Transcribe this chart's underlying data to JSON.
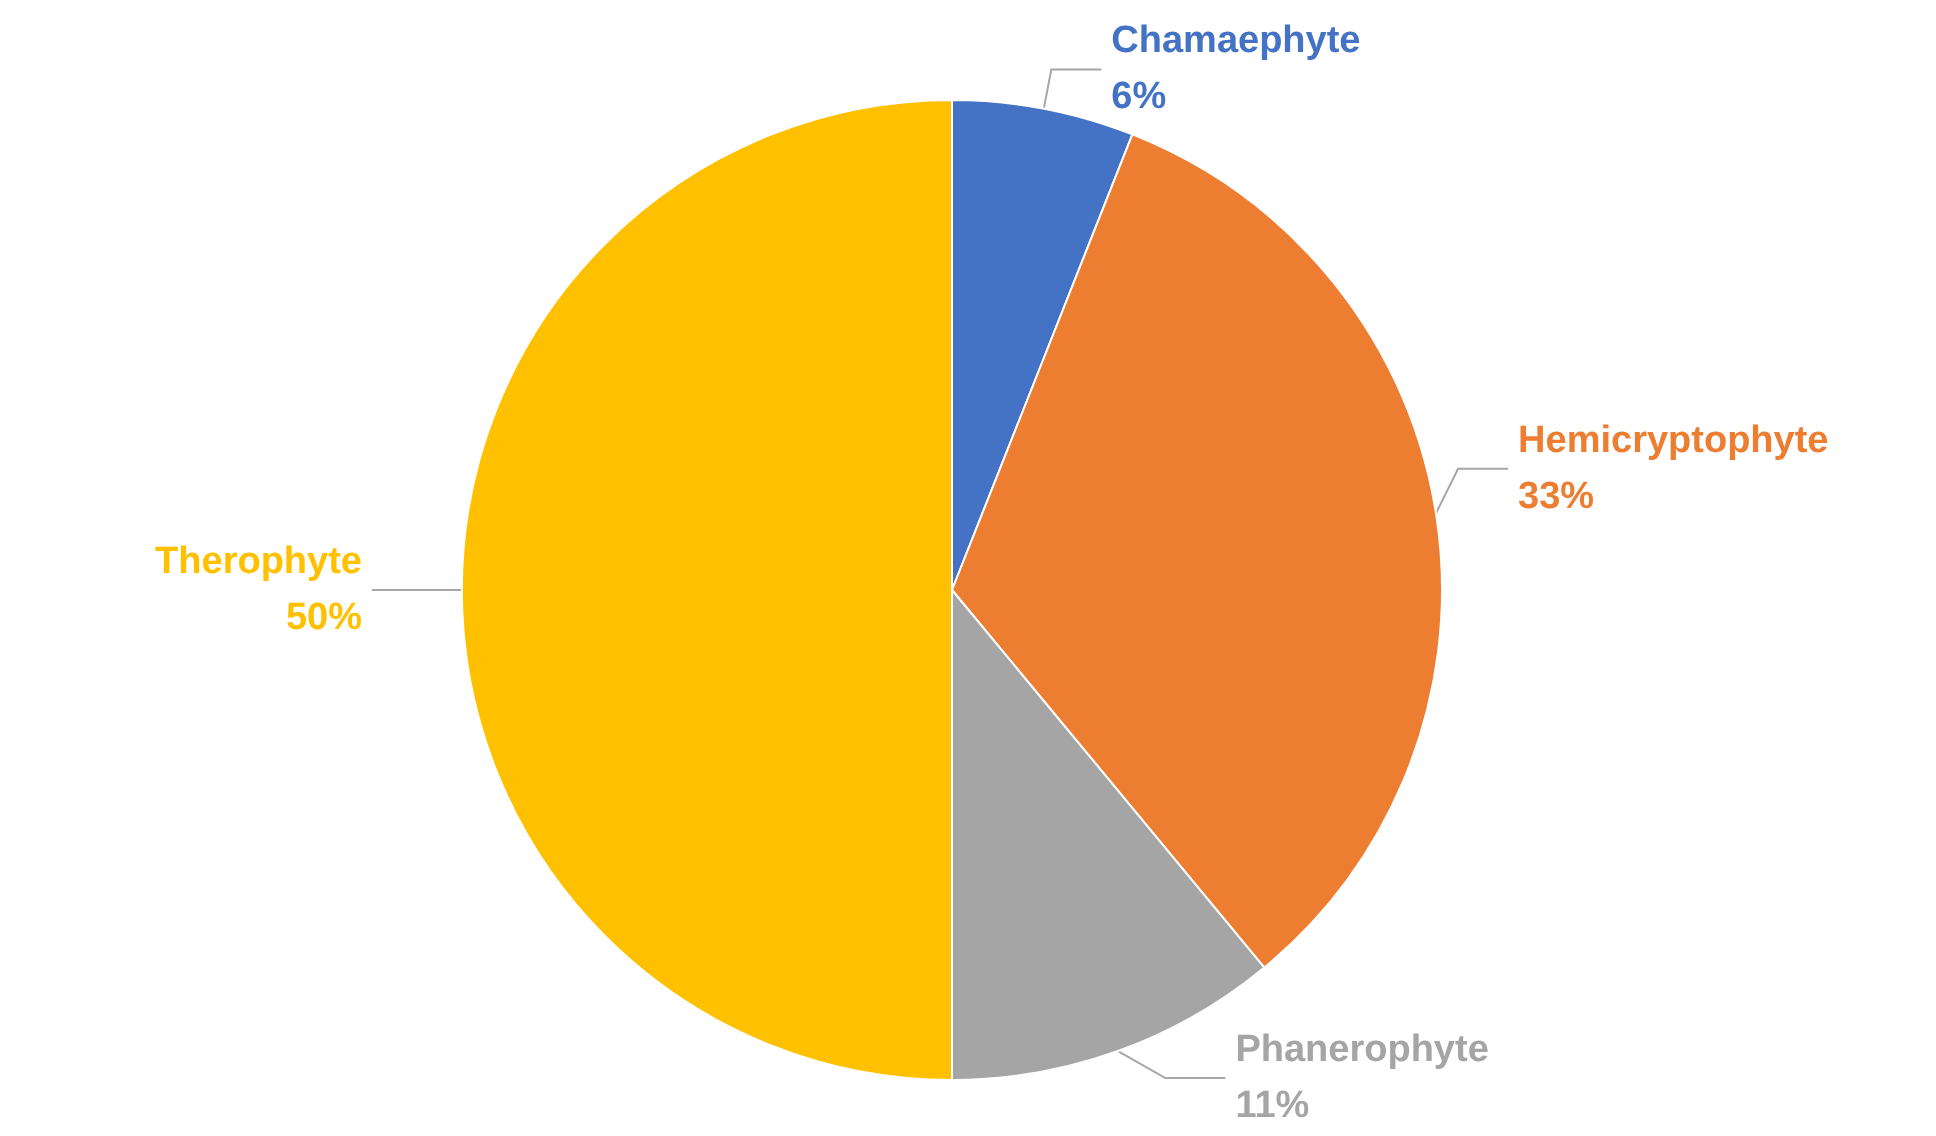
{
  "chart_data": {
    "type": "pie",
    "categories": [
      "Chamaephyte",
      "Hemicryptophyte",
      "Phanerophyte",
      "Therophyte"
    ],
    "values": [
      6,
      33,
      11,
      50
    ],
    "colors": [
      "#4472c4",
      "#ed7d31",
      "#a5a5a5",
      "#ffc000"
    ],
    "value_labels": [
      "6%",
      "33%",
      "11%",
      "50%"
    ],
    "legend": false
  }
}
